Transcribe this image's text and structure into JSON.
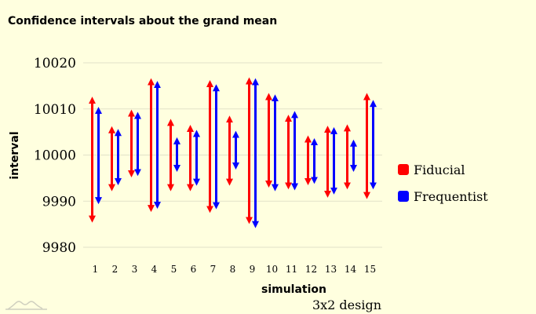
{
  "chart_data": {
    "type": "interval",
    "title": "Confidence intervals about the grand mean",
    "subtitle": "3x2 design",
    "xlabel": "simulation",
    "ylabel": "interval",
    "ylim": [
      9980,
      10020
    ],
    "yticks": [
      9980,
      9990,
      10000,
      10010,
      10020
    ],
    "categories": [
      "1",
      "2",
      "3",
      "4",
      "5",
      "6",
      "7",
      "8",
      "9",
      "10",
      "11",
      "12",
      "13",
      "14",
      "15"
    ],
    "legend_position": "right",
    "grid": true,
    "series": [
      {
        "name": "Fiducial",
        "color": "#ff0000",
        "lower": [
          9985.6,
          9992.4,
          9995.4,
          9987.9,
          9992.4,
          9992.4,
          9987.7,
          9993.6,
          9985.3,
          9993.2,
          9992.8,
          9993.7,
          9991.0,
          9992.8,
          9990.7
        ],
        "upper": [
          10012.4,
          10006.0,
          10009.6,
          10016.4,
          10007.6,
          10006.3,
          10016.0,
          10008.3,
          10016.6,
          10013.2,
          10008.5,
          10004.0,
          10006.1,
          10006.4,
          10013.2
        ]
      },
      {
        "name": "Frequentist",
        "color": "#0000ff",
        "lower": [
          9989.6,
          9993.7,
          9995.7,
          9988.6,
          9996.6,
          9993.6,
          9988.5,
          9997.1,
          9984.4,
          9992.4,
          9992.6,
          9994.0,
          9991.7,
          9996.6,
          9992.8
        ],
        "upper": [
          10010.2,
          10005.4,
          10009.1,
          10015.8,
          10003.6,
          10005.2,
          10015.1,
          10005.0,
          10016.4,
          10012.9,
          10009.3,
          10003.4,
          10005.8,
          10003.1,
          10011.7
        ]
      }
    ]
  }
}
